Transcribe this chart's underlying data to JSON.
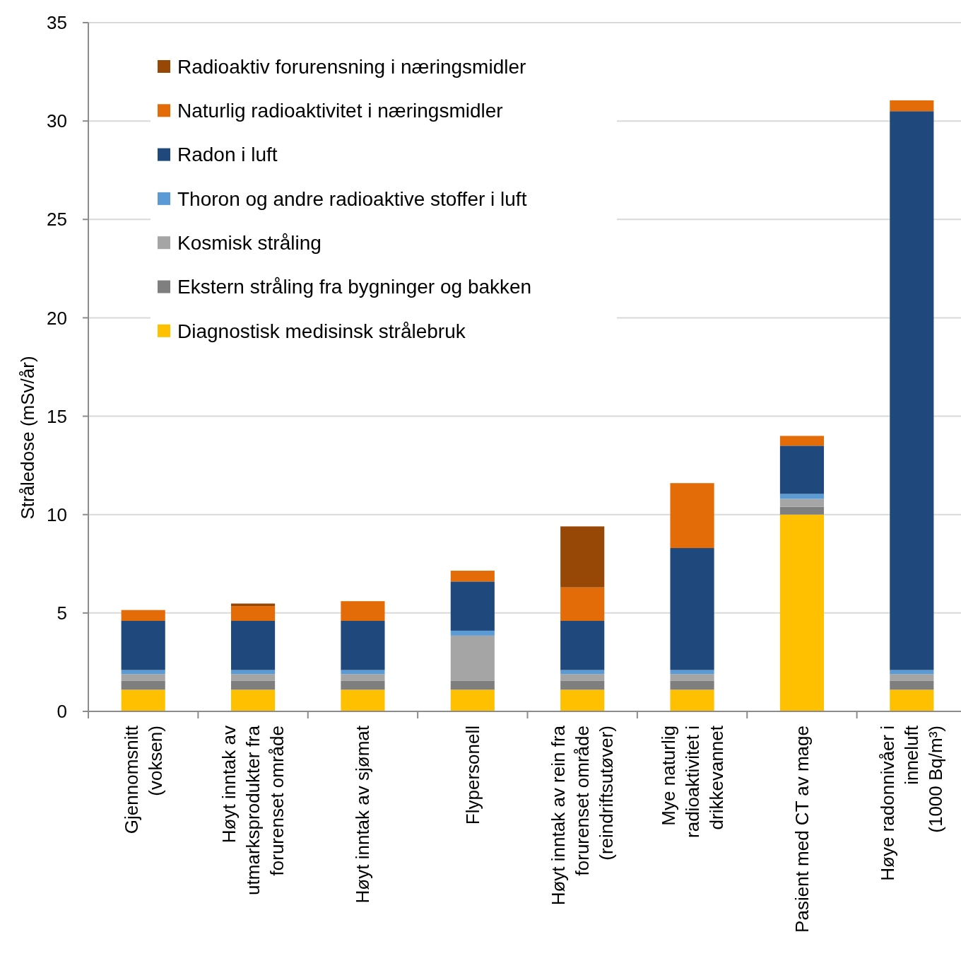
{
  "chart_data": {
    "type": "bar",
    "stacked": true,
    "ylabel": "Stråledose (mSv/år)",
    "categories": [
      "Gjennomsnitt\n(voksen)",
      "Høyt inntak av\nutmarksprodukter fra\nforurenset område",
      "Høyt inntak av sjømat",
      "Flypersonell",
      "Høyt inntak av  rein fra\nforurenset område\n(reindriftsutøver)",
      "Mye naturlig\nradioaktivitet i\ndrikkevannet",
      "Pasient med CT av mage",
      "Høye radonnivåer i\ninneluft\n(1000 Bq/m³)"
    ],
    "series": [
      {
        "name": "Diagnostisk medisinsk strålebruk",
        "color": "#ffc000",
        "values": [
          1.1,
          1.1,
          1.1,
          1.1,
          1.1,
          1.1,
          10,
          1.1
        ]
      },
      {
        "name": "Ekstern stråling fra bygninger og bakken",
        "color": "#7f7f7f",
        "values": [
          0.45,
          0.45,
          0.45,
          0.45,
          0.45,
          0.45,
          0.4,
          0.45
        ]
      },
      {
        "name": "Kosmisk stråling",
        "color": "#a5a5a5",
        "values": [
          0.35,
          0.35,
          0.35,
          2.3,
          0.35,
          0.35,
          0.4,
          0.35
        ]
      },
      {
        "name": "Thoron og andre radioaktive stoffer i luft",
        "color": "#5b9bd5",
        "values": [
          0.2,
          0.2,
          0.2,
          0.25,
          0.2,
          0.2,
          0.25,
          0.2
        ]
      },
      {
        "name": "Radon i luft",
        "color": "#1f497d",
        "values": [
          2.5,
          2.5,
          2.5,
          2.5,
          2.5,
          6.2,
          2.45,
          28.4
        ]
      },
      {
        "name": "Naturlig radioaktivitet i næringsmidler",
        "color": "#e36c09",
        "values": [
          0.55,
          0.75,
          1.0,
          0.55,
          1.7,
          3.3,
          0.5,
          0.55
        ]
      },
      {
        "name": "Radioaktiv forurensning i næringsmidler",
        "color": "#974706",
        "values": [
          null,
          0.13,
          null,
          null,
          3.1,
          null,
          null,
          null
        ]
      }
    ],
    "ylim": [
      0,
      35
    ],
    "yticks": [
      0,
      5,
      10,
      15,
      20,
      25,
      30,
      35
    ],
    "grid": "y",
    "legend": "top left"
  }
}
